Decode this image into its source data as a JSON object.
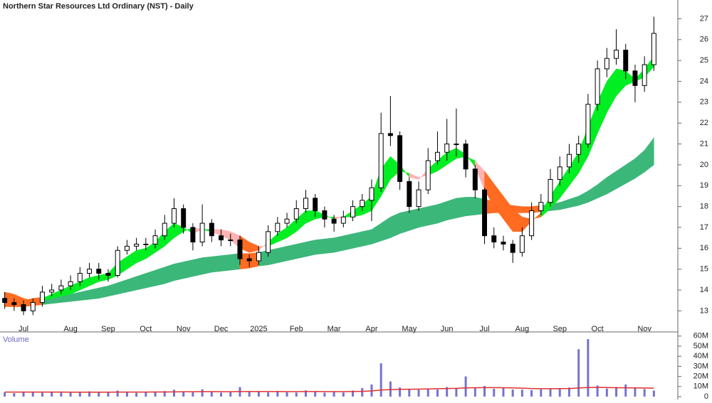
{
  "chart_data": [
    {
      "type": "candlestick",
      "title": "Northern Star Resources Ltd Ordinary (NST) - Daily",
      "categories": [
        null,
        null,
        "Jul",
        null,
        null,
        null,
        null,
        "Aug",
        null,
        null,
        null,
        "Sep",
        null,
        null,
        null,
        "Oct",
        null,
        null,
        null,
        "Nov",
        null,
        null,
        null,
        "Dec",
        null,
        null,
        null,
        "2025",
        null,
        null,
        null,
        "Feb",
        null,
        null,
        null,
        "Mar",
        null,
        null,
        null,
        "Apr",
        null,
        null,
        null,
        "May",
        null,
        null,
        null,
        "Jun",
        null,
        null,
        null,
        "Jul",
        null,
        null,
        null,
        "Aug",
        null,
        null,
        null,
        "Sep",
        null,
        null,
        null,
        "Oct",
        null,
        null,
        null,
        null,
        "Nov",
        null
      ],
      "open": [
        13.6,
        13.4,
        13.3,
        13.0,
        13.4,
        13.9,
        14.0,
        14.2,
        14.4,
        14.8,
        15.0,
        14.8,
        14.7,
        15.9,
        16.1,
        16.2,
        16.2,
        16.6,
        17.2,
        17.9,
        17.0,
        16.3,
        17.2,
        16.6,
        16.4,
        16.4,
        15.5,
        15.4,
        15.8,
        16.8,
        17.2,
        17.4,
        17.9,
        18.4,
        17.8,
        17.4,
        17.2,
        17.5,
        18.0,
        18.3,
        18.9,
        21.5,
        21.4,
        19.2,
        18.0,
        18.8,
        20.2,
        20.6,
        21.0,
        21.0,
        19.8,
        18.8,
        16.6,
        16.3,
        16.2,
        15.8,
        16.6,
        17.8,
        18.2,
        19.3,
        19.9,
        20.5,
        21.0,
        22.9,
        24.6,
        25.1,
        25.5,
        24.5,
        23.8,
        24.8
      ],
      "high": [
        13.9,
        13.6,
        13.5,
        13.6,
        14.2,
        14.3,
        14.5,
        14.7,
        15.1,
        15.3,
        15.3,
        15.0,
        16.1,
        16.4,
        16.5,
        16.5,
        16.9,
        17.6,
        18.4,
        18.1,
        17.2,
        18.1,
        17.4,
        16.9,
        16.7,
        16.6,
        15.7,
        16.1,
        17.1,
        17.5,
        17.7,
        18.3,
        18.8,
        18.6,
        18.0,
        17.6,
        17.8,
        18.3,
        18.6,
        19.3,
        22.5,
        23.3,
        21.6,
        19.4,
        19.2,
        20.8,
        21.6,
        22.2,
        22.7,
        21.2,
        20.0,
        18.9,
        17.0,
        16.6,
        16.4,
        17.0,
        18.2,
        18.6,
        19.8,
        20.4,
        21.0,
        21.4,
        23.4,
        25.0,
        25.6,
        26.5,
        25.8,
        24.8,
        25.2,
        27.1
      ],
      "low": [
        13.1,
        13.0,
        12.8,
        12.8,
        13.2,
        13.7,
        13.8,
        14.0,
        14.2,
        14.6,
        14.5,
        14.4,
        14.6,
        15.7,
        15.9,
        15.9,
        16.0,
        16.4,
        17.0,
        16.7,
        15.9,
        16.1,
        16.3,
        16.1,
        16.1,
        15.2,
        15.1,
        15.2,
        15.6,
        16.6,
        17.0,
        17.2,
        17.7,
        17.5,
        17.0,
        16.8,
        17.0,
        17.3,
        17.8,
        17.3,
        18.7,
        20.9,
        18.8,
        17.7,
        17.8,
        18.6,
        20.0,
        20.2,
        20.4,
        19.4,
        18.4,
        16.2,
        16.0,
        15.9,
        15.3,
        15.6,
        16.4,
        17.6,
        18.0,
        19.0,
        19.6,
        20.1,
        20.8,
        22.6,
        24.2,
        24.8,
        24.1,
        23.0,
        23.5,
        24.5
      ],
      "close": [
        13.4,
        13.3,
        13.0,
        13.4,
        13.9,
        14.0,
        14.2,
        14.4,
        14.8,
        15.0,
        14.8,
        14.7,
        15.9,
        16.1,
        16.2,
        16.2,
        16.6,
        17.2,
        17.9,
        17.0,
        16.3,
        17.2,
        16.6,
        16.4,
        16.4,
        15.5,
        15.4,
        15.8,
        16.8,
        17.2,
        17.4,
        17.9,
        18.4,
        17.8,
        17.4,
        17.2,
        17.5,
        18.0,
        18.3,
        18.9,
        21.5,
        21.4,
        19.2,
        18.0,
        18.8,
        20.2,
        20.6,
        21.0,
        21.0,
        19.8,
        18.8,
        16.6,
        16.3,
        16.2,
        15.8,
        16.6,
        17.8,
        18.2,
        19.3,
        19.9,
        20.5,
        21.0,
        22.9,
        24.6,
        25.1,
        25.5,
        24.5,
        23.8,
        24.8,
        26.3
      ],
      "short_band": {
        "fast": [
          13.5,
          13.4,
          13.2,
          13.3,
          13.6,
          13.8,
          14.0,
          14.2,
          14.4,
          14.6,
          14.7,
          14.8,
          15.3,
          15.6,
          15.9,
          16.0,
          16.3,
          16.8,
          17.2,
          17.0,
          16.7,
          16.9,
          16.8,
          16.6,
          16.4,
          16.0,
          15.8,
          15.9,
          16.3,
          16.7,
          17.0,
          17.4,
          17.8,
          17.8,
          17.6,
          17.4,
          17.5,
          17.8,
          18.1,
          18.5,
          19.8,
          20.4,
          20.0,
          19.4,
          19.3,
          19.8,
          20.2,
          20.6,
          20.8,
          20.5,
          19.9,
          18.8,
          18.0,
          17.4,
          16.8,
          16.8,
          17.3,
          17.7,
          18.5,
          19.2,
          19.9,
          20.6,
          21.8,
          23.0,
          24.0,
          24.6,
          24.5,
          24.1,
          24.6,
          25.2
        ],
        "slow": [
          13.9,
          13.8,
          13.6,
          13.5,
          13.5,
          13.6,
          13.7,
          13.8,
          14.0,
          14.2,
          14.4,
          14.5,
          14.7,
          15.0,
          15.3,
          15.5,
          15.8,
          16.1,
          16.5,
          16.8,
          17.0,
          16.9,
          16.9,
          16.9,
          16.8,
          16.6,
          16.3,
          16.1,
          16.1,
          16.3,
          16.5,
          16.8,
          17.2,
          17.4,
          17.5,
          17.5,
          17.5,
          17.5,
          17.6,
          17.8,
          18.5,
          19.3,
          19.7,
          19.6,
          19.4,
          19.5,
          19.7,
          20.0,
          20.3,
          20.4,
          20.2,
          19.7,
          19.1,
          18.5,
          17.9,
          17.5,
          17.4,
          17.5,
          17.9,
          18.4,
          19.0,
          19.6,
          20.4,
          21.5,
          22.5,
          23.3,
          23.8,
          24.0,
          24.2,
          24.7
        ]
      },
      "long_band": {
        "fast": [
          13.5,
          13.5,
          13.5,
          13.6,
          13.65,
          13.7,
          13.75,
          13.8,
          13.9,
          14.0,
          14.1,
          14.2,
          14.35,
          14.5,
          14.65,
          14.8,
          14.95,
          15.1,
          15.25,
          15.35,
          15.45,
          15.55,
          15.6,
          15.65,
          15.7,
          15.75,
          15.75,
          15.8,
          15.9,
          16.0,
          16.1,
          16.2,
          16.3,
          16.4,
          16.45,
          16.5,
          16.6,
          16.7,
          16.8,
          16.9,
          17.2,
          17.5,
          17.7,
          17.8,
          17.9,
          18.0,
          18.1,
          18.25,
          18.4,
          18.45,
          18.45,
          18.35,
          18.25,
          18.15,
          18.05,
          18.0,
          18.0,
          18.05,
          18.1,
          18.2,
          18.35,
          18.5,
          18.75,
          19.05,
          19.4,
          19.7,
          20.0,
          20.3,
          20.7,
          21.3
        ],
        "slow": [
          13.2,
          13.2,
          13.2,
          13.25,
          13.3,
          13.35,
          13.4,
          13.45,
          13.5,
          13.55,
          13.6,
          13.7,
          13.8,
          13.9,
          14.0,
          14.1,
          14.2,
          14.3,
          14.45,
          14.55,
          14.65,
          14.75,
          14.85,
          14.9,
          14.95,
          15.0,
          15.05,
          15.15,
          15.2,
          15.3,
          15.4,
          15.5,
          15.6,
          15.7,
          15.75,
          15.8,
          15.9,
          16.0,
          16.1,
          16.2,
          16.35,
          16.5,
          16.7,
          16.85,
          17.0,
          17.1,
          17.2,
          17.35,
          17.45,
          17.55,
          17.6,
          17.65,
          17.7,
          17.7,
          17.7,
          17.7,
          17.7,
          17.75,
          17.8,
          17.85,
          17.95,
          18.05,
          18.2,
          18.4,
          18.6,
          18.85,
          19.1,
          19.35,
          19.65,
          20.0
        ]
      },
      "colors": {
        "short_up": "#00ee22",
        "short_down": "#ffb3b3",
        "below": "#ff6b21",
        "long_up": "#3cb77a",
        "up_candle": "#ffffff",
        "down_candle": "#000000"
      },
      "ylim": [
        12.4,
        27.9
      ],
      "yticks": [
        13,
        14,
        15,
        16,
        17,
        18,
        19,
        20,
        21,
        22,
        23,
        24,
        25,
        26,
        27
      ]
    },
    {
      "type": "bar",
      "label": "Volume",
      "values": [
        4200000,
        3500000,
        5000000,
        4800000,
        3900000,
        4500000,
        4000000,
        3800000,
        4600000,
        5200000,
        4100000,
        3900000,
        6000000,
        4400000,
        3700000,
        4200000,
        4800000,
        5500000,
        6800000,
        5100000,
        4300000,
        7200000,
        4600000,
        3900000,
        4500000,
        9500000,
        4800000,
        5000000,
        4200000,
        5600000,
        4300000,
        4000000,
        6100000,
        4700000,
        3900000,
        5300000,
        4100000,
        6000000,
        8500000,
        12000000,
        33000000,
        15000000,
        9000000,
        7500000,
        6800000,
        8000000,
        7000000,
        9500000,
        8200000,
        20000000,
        9000000,
        10500000,
        7800000,
        8400000,
        7000000,
        6900000,
        6500000,
        7200000,
        8000000,
        7500000,
        9000000,
        47000000,
        57000000,
        11000000,
        8000000,
        9500000,
        12000000,
        8500000,
        7500000,
        6000000
      ],
      "average": [
        4500000,
        4500000,
        4500000,
        4500000,
        4500000,
        4500000,
        4500000,
        4400000,
        4400000,
        4400000,
        4400000,
        4400000,
        4500000,
        4500000,
        4500000,
        4500000,
        4600000,
        4600000,
        4700000,
        4800000,
        4800000,
        4900000,
        4900000,
        4800000,
        4800000,
        5000000,
        5000000,
        5000000,
        5000000,
        5000000,
        4900000,
        4900000,
        5000000,
        5000000,
        4900000,
        4900000,
        4900000,
        5000000,
        5200000,
        5600000,
        6500000,
        7000000,
        7200000,
        7300000,
        7400000,
        7600000,
        7800000,
        8000000,
        8200000,
        8600000,
        8800000,
        8900000,
        8900000,
        8800000,
        8600000,
        8400000,
        8000000,
        7800000,
        7800000,
        7900000,
        8000000,
        8500000,
        9000000,
        9200000,
        9000000,
        8800000,
        8700000,
        8600000,
        8500000,
        8400000
      ],
      "color": "#7474d0",
      "average_color": "#e03030",
      "ylim": [
        0,
        62000000
      ],
      "yticks": [
        0,
        {
          "value": 10000000,
          "label": "10M"
        },
        {
          "value": 20000000,
          "label": "20M"
        },
        {
          "value": 30000000,
          "label": "30M"
        },
        {
          "value": 40000000,
          "label": "40M"
        },
        {
          "value": 50000000,
          "label": "50M"
        },
        {
          "value": 60000000,
          "label": "60M"
        }
      ]
    }
  ]
}
